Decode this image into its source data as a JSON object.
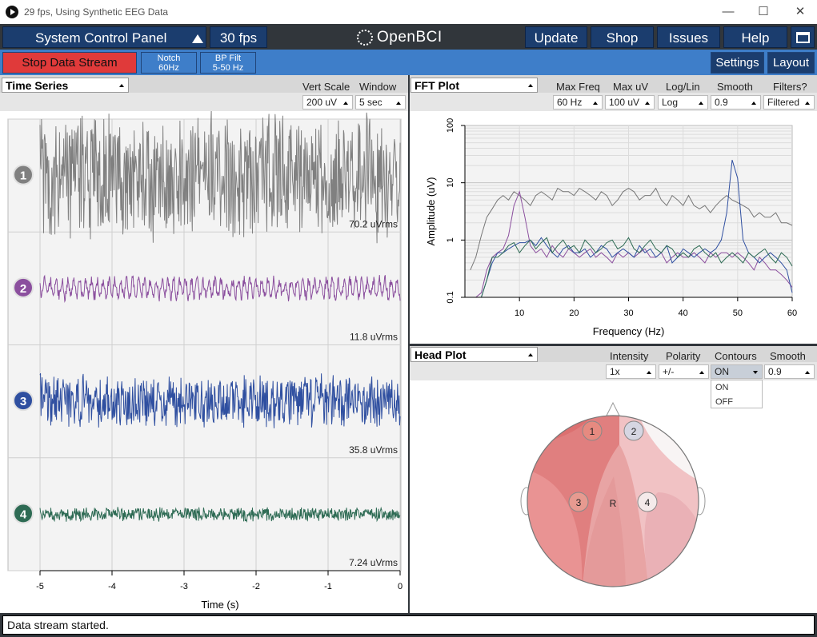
{
  "window": {
    "title": "29 fps, Using Synthetic EEG Data",
    "minimize": "—",
    "maximize": "☐",
    "close": "✕"
  },
  "topnav": {
    "system_control_panel": "System Control Panel",
    "fps": "30 fps",
    "logo": "OpenBCI",
    "update": "Update",
    "shop": "Shop",
    "issues": "Issues",
    "help": "Help"
  },
  "subnav": {
    "stop_stream": "Stop Data Stream",
    "notch_line1": "Notch",
    "notch_line2": "60Hz",
    "bp_line1": "BP Filt",
    "bp_line2": "5-50 Hz",
    "settings": "Settings",
    "layout": "Layout"
  },
  "time_series": {
    "widget": "Time Series",
    "vert_scale_label": "Vert Scale",
    "vert_scale_value": "200 uV",
    "window_label": "Window",
    "window_value": "5 sec",
    "channels": [
      {
        "num": "1",
        "rms": "70.2 uVrms",
        "color": "#808080",
        "amp": 0.42
      },
      {
        "num": "2",
        "rms": "11.8 uVrms",
        "color": "#8b4f9e",
        "amp": 0.08
      },
      {
        "num": "3",
        "rms": "35.8 uVrms",
        "color": "#2f4fa0",
        "amp": 0.17
      },
      {
        "num": "4",
        "rms": "7.24 uVrms",
        "color": "#2e6b54",
        "amp": 0.045
      }
    ],
    "x_ticks": [
      "-5",
      "-4",
      "-3",
      "-2",
      "-1",
      "0"
    ],
    "x_label": "Time (s)"
  },
  "fft": {
    "widget": "FFT Plot",
    "max_freq_label": "Max Freq",
    "max_freq_value": "60 Hz",
    "max_uv_label": "Max uV",
    "max_uv_value": "100 uV",
    "loglin_label": "Log/Lin",
    "loglin_value": "Log",
    "smooth_label": "Smooth",
    "smooth_value": "0.9",
    "filters_label": "Filters?",
    "filters_value": "Filtered",
    "y_label": "Amplitude (uV)",
    "x_label": "Frequency (Hz)",
    "x_ticks": [
      "10",
      "20",
      "30",
      "40",
      "50",
      "60"
    ],
    "y_ticks": [
      "100",
      "10",
      "1",
      "0.1"
    ]
  },
  "chart_data": {
    "type": "line",
    "x_label": "Frequency (Hz)",
    "y_label": "Amplitude (uV)",
    "xlim": [
      0,
      60
    ],
    "ylim": [
      0.1,
      100
    ],
    "y_scale": "log",
    "grid": true,
    "x": [
      1,
      2,
      3,
      4,
      5,
      6,
      7,
      8,
      9,
      10,
      11,
      12,
      13,
      14,
      15,
      16,
      17,
      18,
      19,
      20,
      21,
      22,
      23,
      24,
      25,
      26,
      27,
      28,
      29,
      30,
      31,
      32,
      33,
      34,
      35,
      36,
      37,
      38,
      39,
      40,
      41,
      42,
      43,
      44,
      45,
      46,
      47,
      48,
      49,
      50,
      51,
      52,
      53,
      54,
      55,
      56,
      57,
      58,
      59,
      60
    ],
    "series": [
      {
        "color": "#777777",
        "values": [
          0.3,
          0.5,
          1.2,
          2.5,
          3.5,
          5,
          6,
          5,
          7,
          6,
          5,
          4,
          6,
          7,
          6,
          5,
          8,
          7,
          7,
          6,
          8,
          7,
          6,
          5,
          7,
          6,
          4,
          5,
          7,
          8,
          7,
          5,
          6,
          6,
          8,
          5,
          4,
          6,
          5,
          4,
          6,
          4,
          3.5,
          4,
          3,
          4,
          5,
          6,
          5,
          4.5,
          4,
          3.5,
          2.5,
          3,
          2.5,
          2.5,
          3,
          2,
          2,
          1.8
        ]
      },
      {
        "color": "#8b4f9e",
        "values": [
          0.1,
          0.1,
          0.12,
          0.3,
          0.5,
          0.6,
          0.7,
          1.2,
          4,
          7,
          2.5,
          0.8,
          0.6,
          0.7,
          0.5,
          0.8,
          0.6,
          0.5,
          0.7,
          0.6,
          0.5,
          0.6,
          0.7,
          0.5,
          0.6,
          0.5,
          0.4,
          0.6,
          0.5,
          0.6,
          0.5,
          0.6,
          0.7,
          0.5,
          0.5,
          0.6,
          0.4,
          0.5,
          0.6,
          0.5,
          0.5,
          0.6,
          0.5,
          0.4,
          0.6,
          0.5,
          0.6,
          0.6,
          0.5,
          0.6,
          0.5,
          0.4,
          0.3,
          0.5,
          0.4,
          0.3,
          0.3,
          0.25,
          0.2,
          0.15
        ]
      },
      {
        "color": "#2f4fa0",
        "values": [
          0.1,
          0.1,
          0.1,
          0.2,
          0.4,
          0.6,
          0.6,
          0.7,
          0.8,
          0.9,
          0.9,
          1,
          0.8,
          1.1,
          0.8,
          0.6,
          0.5,
          0.7,
          0.8,
          0.6,
          0.6,
          0.7,
          0.5,
          0.6,
          0.8,
          0.7,
          0.5,
          0.6,
          0.7,
          0.6,
          0.5,
          0.8,
          0.6,
          0.7,
          0.5,
          0.6,
          0.8,
          0.4,
          0.5,
          0.7,
          0.6,
          0.5,
          0.6,
          0.7,
          0.6,
          0.7,
          1,
          3,
          25,
          12,
          1,
          0.6,
          0.5,
          0.4,
          0.5,
          0.6,
          0.5,
          0.4,
          0.3,
          0.12
        ]
      },
      {
        "color": "#2e6b54",
        "values": [
          0.1,
          0.1,
          0.1,
          0.2,
          0.5,
          0.5,
          0.6,
          0.8,
          0.9,
          0.6,
          0.8,
          1,
          0.7,
          0.9,
          1.1,
          0.6,
          0.8,
          1,
          0.7,
          0.8,
          0.6,
          1,
          0.8,
          0.6,
          0.7,
          0.9,
          1,
          0.7,
          0.8,
          1.1,
          0.7,
          0.6,
          0.8,
          1,
          0.7,
          0.6,
          0.8,
          0.7,
          0.5,
          0.6,
          0.5,
          0.7,
          0.8,
          0.6,
          0.5,
          0.6,
          0.4,
          0.5,
          0.6,
          0.5,
          0.4,
          0.6,
          0.5,
          0.6,
          0.7,
          0.5,
          0.4,
          0.6,
          0.5,
          0.35
        ]
      }
    ]
  },
  "head_plot": {
    "widget": "Head Plot",
    "intensity_label": "Intensity",
    "intensity_value": "1x",
    "polarity_label": "Polarity",
    "polarity_value": "+/-",
    "contours_label": "Contours",
    "contours_value": "ON",
    "contours_options": [
      "ON",
      "OFF"
    ],
    "smooth_label": "Smooth",
    "smooth_value": "0.9",
    "electrodes": [
      "1",
      "2",
      "3",
      "4"
    ],
    "reference": "R"
  },
  "status": {
    "message": "Data stream started."
  },
  "colors": {
    "nav_dark": "#31363b",
    "nav_button": "#1b3d6e",
    "sub_bar": "#3e7ec9",
    "stop_red": "#e03a3a"
  }
}
